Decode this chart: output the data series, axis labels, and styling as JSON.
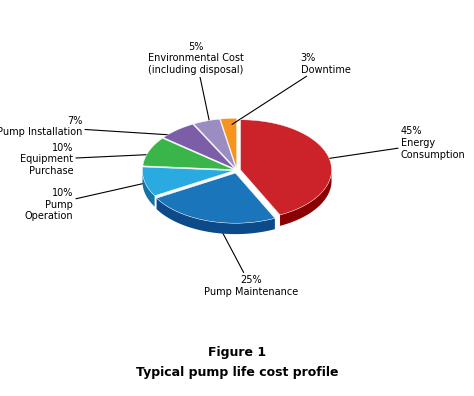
{
  "slices": [
    {
      "label": "45%\nEnergy\nConsumption",
      "value": 45,
      "color": "#CC2229",
      "dark_color": "#8B0000",
      "explode": 0.04
    },
    {
      "label": "25%\nPump Maintenance",
      "value": 25,
      "color": "#1B75BB",
      "dark_color": "#0D4A8A",
      "explode": 0.06
    },
    {
      "label": "10%\nPump\nOperation",
      "value": 10,
      "color": "#29ABE2",
      "dark_color": "#1575A0",
      "explode": 0.04
    },
    {
      "label": "10%\nEquipment\nPurchase",
      "value": 10,
      "color": "#39B54A",
      "dark_color": "#1E7A2A",
      "explode": 0.04
    },
    {
      "label": "7%\nPump Installation",
      "value": 7,
      "color": "#7B5EA7",
      "dark_color": "#4A3070",
      "explode": 0.04
    },
    {
      "label": "5%\nEnvironmental Cost\n(including disposal)",
      "value": 5,
      "color": "#9B8DC2",
      "dark_color": "#6B5A99",
      "explode": 0.04
    },
    {
      "label": "3%\nDowntime",
      "value": 3,
      "color": "#F7941D",
      "dark_color": "#C06000",
      "explode": 0.04
    }
  ],
  "start_angle": 90,
  "figure_title": "Figure 1",
  "figure_subtitle": "Typical pump life cost profile",
  "background_color": "#FFFFFF",
  "depth": 0.12,
  "yscale": 0.55
}
